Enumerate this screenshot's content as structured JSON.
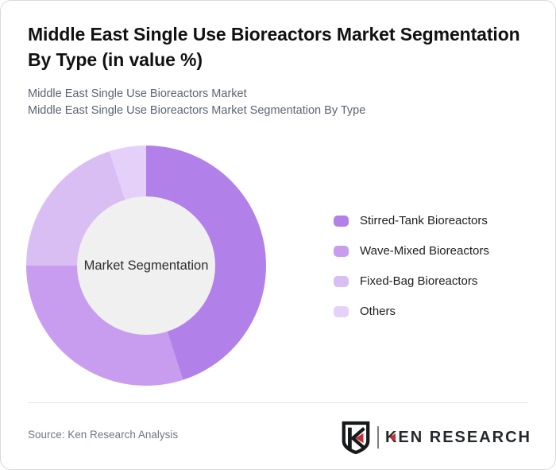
{
  "header": {
    "title": "Middle East Single Use Bioreactors Market Segmentation By Type (in value %)",
    "subtitles": [
      "Middle East Single Use Bioreactors Market",
      "Middle East Single Use Bioreactors Market Segmentation By Type"
    ]
  },
  "chart_data": {
    "type": "pie",
    "variant": "donut",
    "title": "Middle East Single Use Bioreactors Market Segmentation By Type (in value %)",
    "center_label": "Market Segmentation",
    "categories": [
      "Stirred-Tank Bioreactors",
      "Wave-Mixed Bioreactors",
      "Fixed-Bag Bioreactors",
      "Others"
    ],
    "values": [
      45,
      30,
      20,
      5
    ],
    "unit": "percent",
    "colors": [
      "#b180e9",
      "#c89df0",
      "#d9bef4",
      "#e4d0f8"
    ],
    "start_angle_deg": 0,
    "direction": "clockwise",
    "legend_position": "right",
    "hole_color": "#f0f0f0"
  },
  "legend": {
    "items": [
      {
        "label": "Stirred-Tank Bioreactors",
        "color": "#b180e9"
      },
      {
        "label": "Wave-Mixed Bioreactors",
        "color": "#c89df0"
      },
      {
        "label": "Fixed-Bag Bioreactors",
        "color": "#d9bef4"
      },
      {
        "label": "Others",
        "color": "#e4d0f8"
      }
    ]
  },
  "footer": {
    "source": "Source: Ken Research Analysis",
    "logo_text": "KEN RESEARCH"
  }
}
